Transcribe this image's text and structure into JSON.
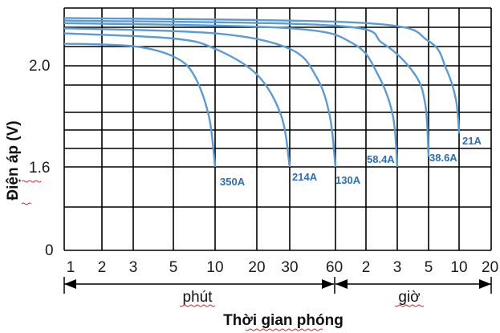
{
  "chart_data": {
    "type": "line",
    "title": "",
    "xlabel": "Thời gian phóng",
    "ylabel": "Điện áp (V)",
    "y_ticks": [
      "0",
      "1.6",
      "2.0"
    ],
    "x_ticks": [
      "1",
      "2",
      "3",
      "5",
      "10",
      "20",
      "30",
      "60",
      "2",
      "3",
      "5",
      "10",
      "20"
    ],
    "x_units": [
      {
        "label": "phút",
        "span": "1–60 phút"
      },
      {
        "label": "giờ",
        "span": "1–20 giờ"
      }
    ],
    "grid": true,
    "line_color": "#5b9bd5",
    "label_color": "#2e6db4",
    "series": [
      {
        "name": "350A",
        "end_time_min": 10,
        "points": [
          [
            1,
            2.08
          ],
          [
            3,
            2.07
          ],
          [
            5,
            2.03
          ],
          [
            7,
            1.96
          ],
          [
            9,
            1.8
          ],
          [
            10,
            1.6
          ]
        ]
      },
      {
        "name": "214A",
        "end_time_min": 30,
        "points": [
          [
            1,
            2.12
          ],
          [
            5,
            2.1
          ],
          [
            10,
            2.06
          ],
          [
            20,
            1.96
          ],
          [
            27,
            1.8
          ],
          [
            30,
            1.6
          ]
        ]
      },
      {
        "name": "130A",
        "end_time_min": 60,
        "points": [
          [
            1,
            2.14
          ],
          [
            10,
            2.12
          ],
          [
            30,
            2.06
          ],
          [
            45,
            1.95
          ],
          [
            55,
            1.8
          ],
          [
            60,
            1.6
          ]
        ]
      },
      {
        "name": "58.4A",
        "end_time_min": 180,
        "points": [
          [
            1,
            2.16
          ],
          [
            30,
            2.14
          ],
          [
            90,
            2.08
          ],
          [
            140,
            1.96
          ],
          [
            170,
            1.8
          ],
          [
            180,
            1.6
          ]
        ]
      },
      {
        "name": "38.6A",
        "end_time_min": 300,
        "points": [
          [
            1,
            2.17
          ],
          [
            60,
            2.15
          ],
          [
            150,
            2.08
          ],
          [
            240,
            1.96
          ],
          [
            285,
            1.84
          ],
          [
            300,
            1.64
          ]
        ]
      },
      {
        "name": "21A",
        "end_time_min": 600,
        "points": [
          [
            1,
            2.18
          ],
          [
            120,
            2.16
          ],
          [
            300,
            2.09
          ],
          [
            450,
            1.98
          ],
          [
            560,
            1.86
          ],
          [
            600,
            1.73
          ]
        ]
      }
    ]
  }
}
